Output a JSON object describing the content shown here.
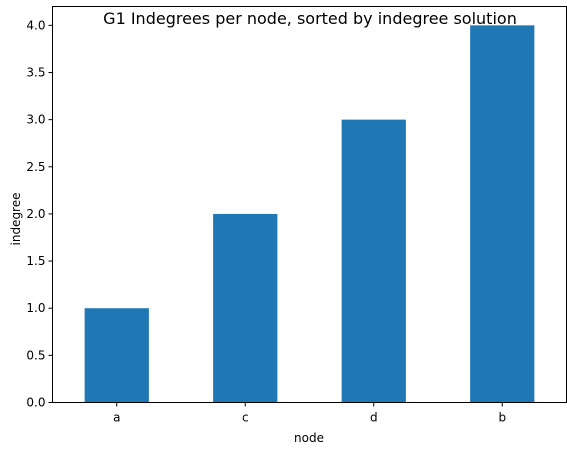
{
  "chart_data": {
    "type": "bar",
    "title": "G1 Indegrees per node, sorted by indegree solution",
    "xlabel": "node",
    "ylabel": "indegree",
    "categories": [
      "a",
      "c",
      "d",
      "b"
    ],
    "values": [
      1,
      2,
      3,
      4
    ],
    "ylim": [
      0,
      4.2
    ],
    "yticks": [
      "0.0",
      "0.5",
      "1.0",
      "1.5",
      "2.0",
      "2.5",
      "3.0",
      "3.5",
      "4.0"
    ],
    "bar_color": "#1f77b4",
    "grid": false,
    "legend": false
  }
}
